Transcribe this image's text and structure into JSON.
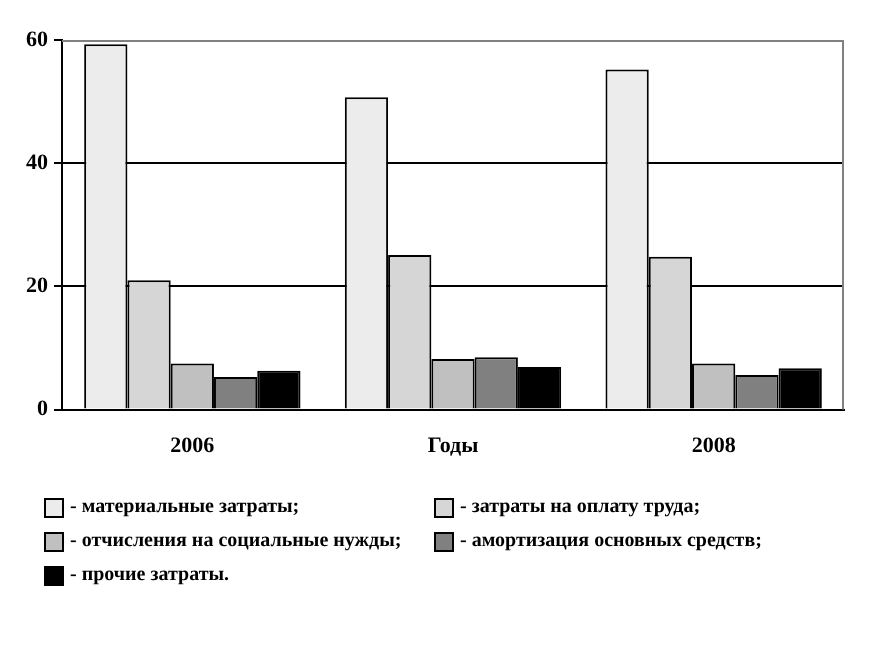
{
  "chart_data": {
    "type": "bar",
    "categories": [
      "2006",
      "Годы",
      "2008"
    ],
    "series": [
      {
        "name": "- материальные затраты;",
        "color": "#ececec",
        "values": [
          59.3,
          50.7,
          55.2
        ]
      },
      {
        "name": "- затраты на оплату труда;",
        "color": "#d6d6d6",
        "values": [
          21,
          25.1,
          24.8
        ]
      },
      {
        "name": "- отчисления на социальные нужды;",
        "color": "#c0c0c0",
        "values": [
          7.5,
          8.2,
          7.5
        ]
      },
      {
        "name": "- амортизация основных средств;",
        "color": "#808080",
        "values": [
          5.3,
          8.5,
          5.6
        ]
      },
      {
        "name": "- прочие затраты.",
        "color": "#000000",
        "values": [
          6.3,
          6.9,
          6.7
        ]
      }
    ],
    "ylim": [
      0,
      60
    ],
    "yticks": [
      0,
      20,
      40,
      60
    ],
    "grid": "y",
    "legend": "bottom"
  }
}
